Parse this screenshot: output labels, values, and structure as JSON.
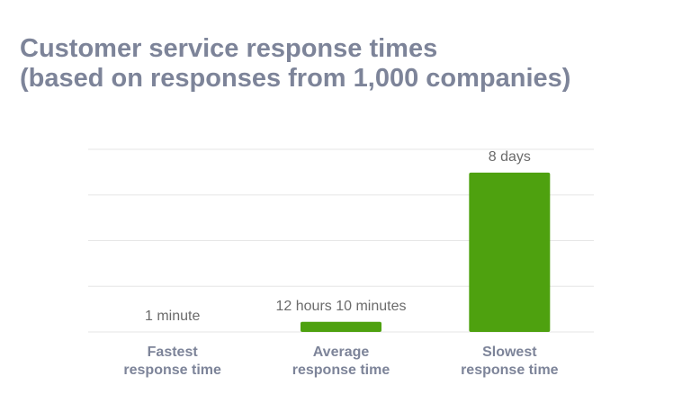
{
  "chart_data": {
    "type": "bar",
    "title": "Customer service response times",
    "subtitle": "(based on responses from 1,000 companies)",
    "categories": [
      "Fastest response time",
      "Average response time",
      "Slowest response time"
    ],
    "values": [
      1,
      730,
      11520
    ],
    "value_labels": [
      "1 minute",
      "12 hours 10 minutes",
      "8 days"
    ],
    "color": "#4ea10f",
    "ylim": [
      0,
      13200
    ],
    "yticks": [
      0,
      3300,
      6600,
      9900,
      13200
    ],
    "show_ytick_labels": false,
    "grid": true
  }
}
